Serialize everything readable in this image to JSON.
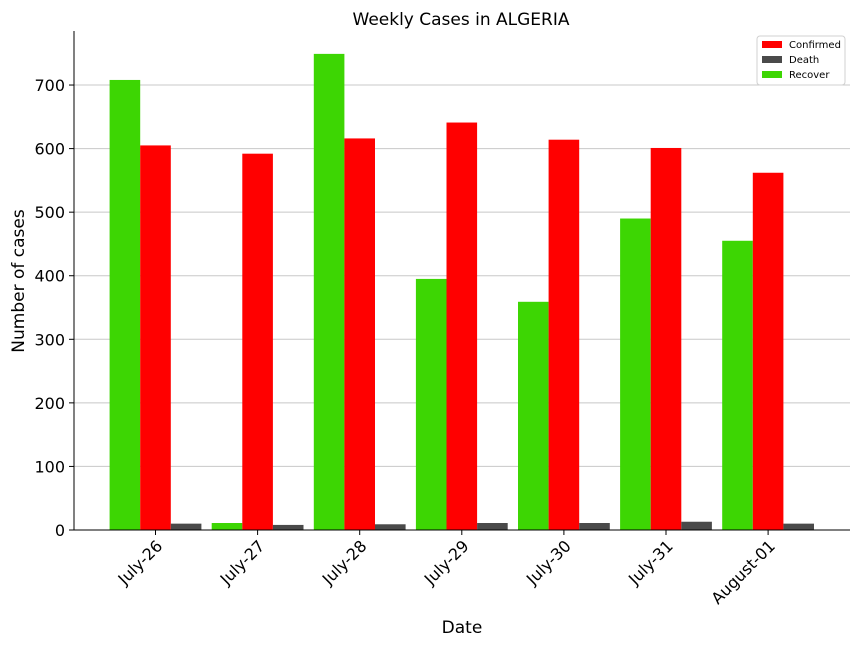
{
  "chart_data": {
    "type": "bar",
    "title": "Weekly Cases in ALGERIA",
    "xlabel": "Date",
    "ylabel": "Number of cases",
    "categories": [
      "July-26",
      "July-27",
      "July-28",
      "July-29",
      "July-30",
      "July-31",
      "August-01"
    ],
    "series": [
      {
        "name": "Recover",
        "color": "#3dd603",
        "values": [
          708,
          11,
          749,
          395,
          359,
          490,
          455
        ]
      },
      {
        "name": "Confirmed",
        "color": "#ff0000",
        "values": [
          605,
          592,
          616,
          641,
          614,
          601,
          562
        ]
      },
      {
        "name": "Death",
        "color": "#4a4a4a",
        "values": [
          10,
          8,
          9,
          11,
          11,
          13,
          10
        ]
      }
    ],
    "legend_order": [
      "Confirmed",
      "Death",
      "Recover"
    ],
    "legend_position": "top-right",
    "ylim": [
      0,
      785
    ],
    "yticks": [
      0,
      100,
      200,
      300,
      400,
      500,
      600,
      700
    ],
    "grid": "horizontal"
  }
}
